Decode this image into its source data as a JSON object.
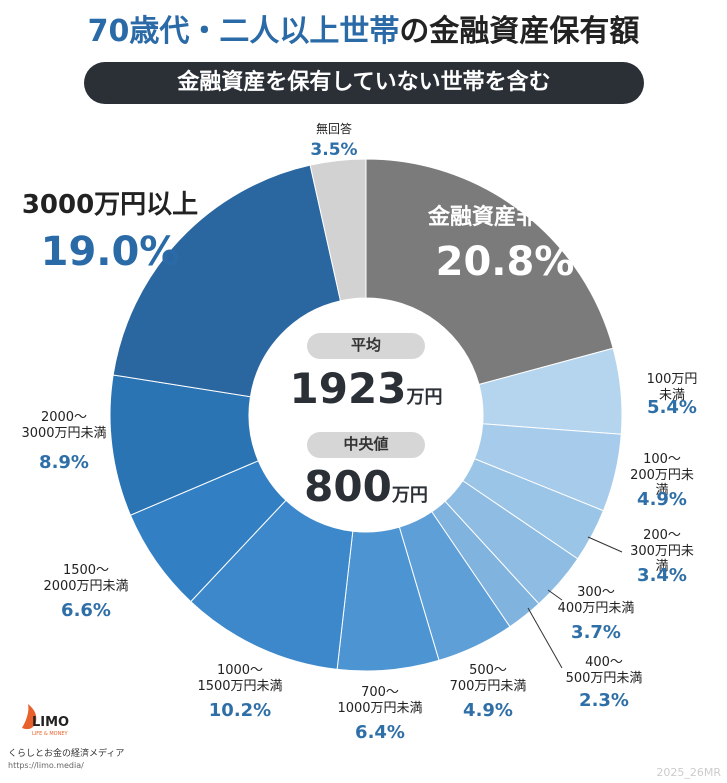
{
  "chart_data": {
    "type": "donut",
    "title_parts": [
      "70歳代・二人以上世帯",
      "の金融資産保有額"
    ],
    "subtitle": "金融資産を保有していない世帯を含む",
    "categories": [
      "金融資産非保有",
      "100万円未満",
      "100～\n200万円未満",
      "200～\n300万円未満",
      "300～\n400万円未満",
      "400～\n500万円未満",
      "500～\n700万円未満",
      "700～\n1000万円未満",
      "1000～\n1500万円未満",
      "1500～\n2000万円未満",
      "2000～\n3000万円未満",
      "3000万円以上",
      "無回答"
    ],
    "values": [
      20.8,
      5.4,
      4.9,
      3.4,
      3.7,
      2.3,
      4.9,
      6.4,
      10.2,
      6.6,
      8.9,
      19.0,
      3.5
    ],
    "value_labels": [
      "20.8%",
      "5.4%",
      "4.9%",
      "3.4%",
      "3.7%",
      "2.3%",
      "4.9%",
      "6.4%",
      "10.2%",
      "6.6%",
      "8.9%",
      "19.0%",
      "3.5%"
    ],
    "colors": [
      "#7b7b7b",
      "#b5d5ef",
      "#a7cceb",
      "#9bc5e7",
      "#8ebce3",
      "#81b3df",
      "#5f9fd7",
      "#4c94d2",
      "#3c88cb",
      "#3280c3",
      "#2b74b4",
      "#2a66a0",
      "#d2d2d2"
    ],
    "center": {
      "mean_label": "平均",
      "mean": 1923,
      "unit": "万円",
      "median_label": "中央値",
      "median": 800
    }
  },
  "footer": {
    "logo": "LIMO",
    "logo_sub": "LIFE & MONEY",
    "tagline": "くらしとお金の経済メディア",
    "url": "https://limo.media/",
    "watermark": "2025_26MR"
  }
}
